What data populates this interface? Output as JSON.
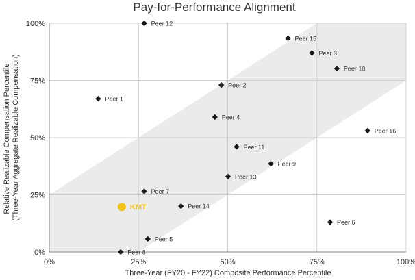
{
  "chart_data": {
    "type": "scatter",
    "title": "Pay-for-Performance Alignment",
    "xlabel": "Three-Year (FY20 - FY22) Composite Performance Percentile",
    "ylabel_line1": "Relative Realizable Compensation Percentile",
    "ylabel_line2": "(Three-Year Aggregate Realizable Compensation)",
    "xlim": [
      0,
      100
    ],
    "ylim": [
      0,
      100
    ],
    "x_ticks": [
      0,
      25,
      50,
      75,
      100
    ],
    "y_ticks": [
      0,
      25,
      50,
      75,
      100
    ],
    "x_tick_labels": [
      "0%",
      "25%",
      "50%",
      "75%",
      "100%"
    ],
    "y_tick_labels": [
      "0%",
      "25%",
      "50%",
      "75%",
      "100%"
    ],
    "grid": true,
    "alignment_band": {
      "description_lines": [
        {
          "from": [
            0,
            25
          ],
          "to": [
            75,
            100
          ]
        },
        {
          "from": [
            25,
            0
          ],
          "to": [
            100,
            75
          ]
        }
      ]
    },
    "colors": {
      "peer": "#1a1a1a",
      "highlight": "#f0c419",
      "band": "#ebebeb",
      "grid": "#d0d0d0",
      "axis": "#888888"
    },
    "points": [
      {
        "label": "Peer 1",
        "x": 13.7,
        "y": 67
      },
      {
        "label": "Peer 2",
        "x": 48.2,
        "y": 73
      },
      {
        "label": "Peer 3",
        "x": 73.6,
        "y": 87
      },
      {
        "label": "Peer 4",
        "x": 46.4,
        "y": 59
      },
      {
        "label": "Peer 5",
        "x": 27.6,
        "y": 5.7
      },
      {
        "label": "Peer 6",
        "x": 78.7,
        "y": 13
      },
      {
        "label": "Peer 7",
        "x": 26.6,
        "y": 26.5
      },
      {
        "label": "Peer 8",
        "x": 20,
        "y": 0
      },
      {
        "label": "Peer 9",
        "x": 62.1,
        "y": 38.6
      },
      {
        "label": "Peer 10",
        "x": 80.6,
        "y": 80.2
      },
      {
        "label": "Peer 11",
        "x": 52.5,
        "y": 46
      },
      {
        "label": "Peer 12",
        "x": 26.6,
        "y": 100
      },
      {
        "label": "Peer 13",
        "x": 50.1,
        "y": 33
      },
      {
        "label": "Peer 14",
        "x": 36.9,
        "y": 20
      },
      {
        "label": "Peer 15",
        "x": 66.9,
        "y": 93.4
      },
      {
        "label": "Peer 16",
        "x": 89.2,
        "y": 53
      }
    ],
    "highlight": {
      "label": "KMT",
      "x": 20.3,
      "y": 19.7
    }
  }
}
